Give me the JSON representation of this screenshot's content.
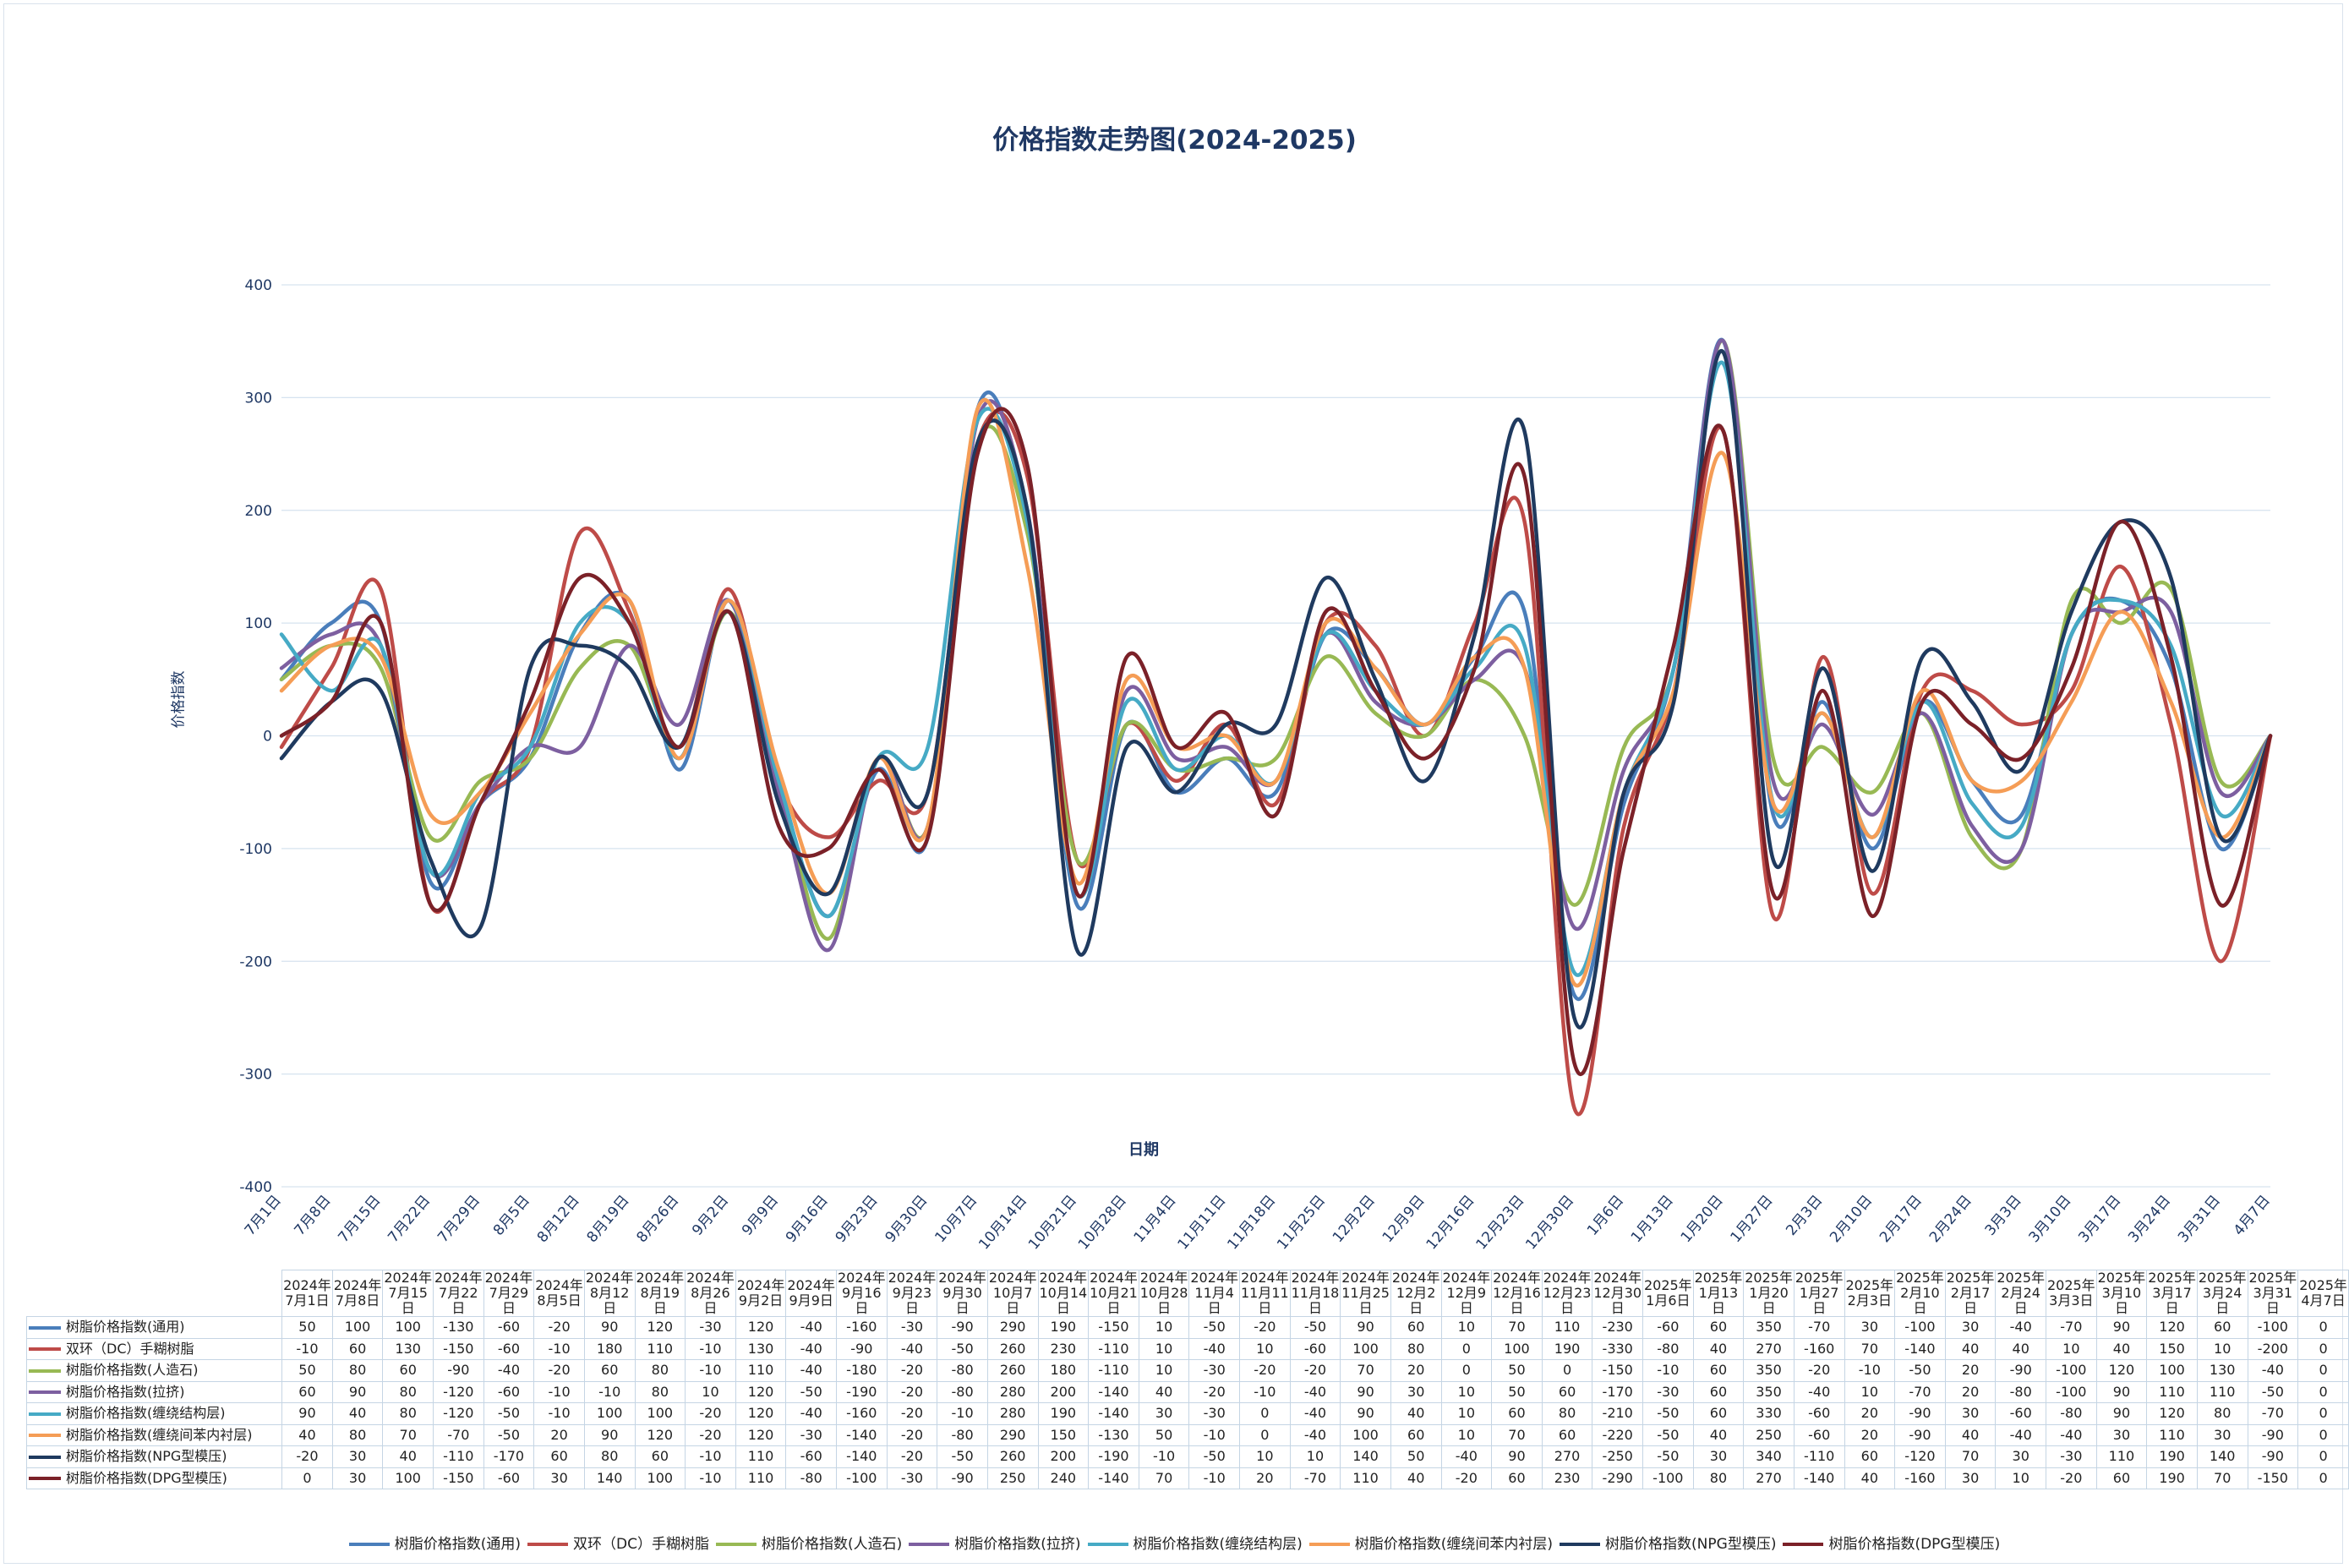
{
  "chart_data": {
    "type": "line",
    "title": "价格指数走势图(2024-2025)",
    "xlabel": "日期",
    "ylabel": "价格指数",
    "ylim": [
      -400,
      400
    ],
    "yticks": [
      400,
      300,
      200,
      100,
      0,
      -100,
      -200,
      -300,
      -400
    ],
    "grid": true,
    "legend_position": "bottom",
    "x_axis_labels": [
      "7月1日",
      "7月8日",
      "7月15日",
      "7月22日",
      "7月29日",
      "8月5日",
      "8月12日",
      "8月19日",
      "8月26日",
      "9月2日",
      "9月9日",
      "9月16日",
      "9月23日",
      "9月30日",
      "10月7日",
      "10月14日",
      "10月21日",
      "10月28日",
      "11月4日",
      "11月11日",
      "11月18日",
      "11月25日",
      "12月2日",
      "12月9日",
      "12月16日",
      "12月23日",
      "12月30日",
      "1月6日",
      "1月13日",
      "1月20日",
      "1月27日",
      "2月3日",
      "2月10日",
      "2月17日",
      "2月24日",
      "3月3日",
      "3月10日",
      "3月17日",
      "3月24日",
      "3月31日",
      "4月7日"
    ],
    "categories": [
      "2024年7月1日",
      "2024年7月8日",
      "2024年7月15日",
      "2024年7月22日",
      "2024年7月29日",
      "2024年8月5日",
      "2024年8月12日",
      "2024年8月19日",
      "2024年8月26日",
      "2024年9月2日",
      "2024年9月9日",
      "2024年9月16日",
      "2024年9月23日",
      "2024年9月30日",
      "2024年10月7日",
      "2024年10月14日",
      "2024年10月21日",
      "2024年10月28日",
      "2024年11月4日",
      "2024年11月11日",
      "2024年11月18日",
      "2024年11月25日",
      "2024年12月2日",
      "2024年12月9日",
      "2024年12月16日",
      "2024年12月23日",
      "2024年12月30日",
      "2025年1月6日",
      "2025年1月13日",
      "2025年1月20日",
      "2025年1月27日",
      "2025年2月3日",
      "2025年2月10日",
      "2025年2月17日",
      "2025年2月24日",
      "2025年3月3日",
      "2025年3月10日",
      "2025年3月17日",
      "2025年3月24日",
      "2025年3月31日",
      "2025年4月7日"
    ],
    "series": [
      {
        "name": "树脂价格指数(通用)",
        "color": "#4a7ebb",
        "values": [
          50,
          100,
          100,
          -130,
          -60,
          -20,
          90,
          120,
          -30,
          120,
          -40,
          -160,
          -30,
          -90,
          290,
          190,
          -150,
          10,
          -50,
          -20,
          -50,
          90,
          60,
          10,
          70,
          110,
          -230,
          -60,
          60,
          350,
          -70,
          30,
          -100,
          30,
          -40,
          -70,
          90,
          120,
          60,
          -100,
          0
        ]
      },
      {
        "name": "双环（DC）手糊树脂",
        "color": "#be4b48",
        "values": [
          -10,
          60,
          130,
          -150,
          -60,
          -10,
          180,
          110,
          -10,
          130,
          -40,
          -90,
          -40,
          -50,
          260,
          230,
          -110,
          10,
          -40,
          10,
          -60,
          100,
          80,
          0,
          100,
          190,
          -330,
          -80,
          40,
          270,
          -160,
          70,
          -140,
          40,
          40,
          10,
          40,
          150,
          10,
          -200,
          0
        ]
      },
      {
        "name": "树脂价格指数(人造石)",
        "color": "#98b954",
        "values": [
          50,
          80,
          60,
          -90,
          -40,
          -20,
          60,
          80,
          -10,
          110,
          -40,
          -180,
          -20,
          -80,
          260,
          180,
          -110,
          10,
          -30,
          -20,
          -20,
          70,
          20,
          0,
          50,
          0,
          -150,
          -10,
          60,
          350,
          -20,
          -10,
          -50,
          20,
          -90,
          -100,
          120,
          100,
          130,
          -40,
          0
        ]
      },
      {
        "name": "树脂价格指数(拉挤)",
        "color": "#7d5fa0",
        "values": [
          60,
          90,
          80,
          -120,
          -60,
          -10,
          -10,
          80,
          10,
          120,
          -50,
          -190,
          -20,
          -80,
          280,
          200,
          -140,
          40,
          -20,
          -10,
          -40,
          90,
          30,
          10,
          50,
          60,
          -170,
          -30,
          60,
          350,
          -40,
          10,
          -70,
          20,
          -80,
          -100,
          90,
          110,
          110,
          -50,
          0
        ]
      },
      {
        "name": "树脂价格指数(缠绕结构层)",
        "color": "#46aac5",
        "values": [
          90,
          40,
          80,
          -120,
          -50,
          -10,
          100,
          100,
          -20,
          120,
          -40,
          -160,
          -20,
          -10,
          280,
          190,
          -140,
          30,
          -30,
          0,
          -40,
          90,
          40,
          10,
          60,
          80,
          -210,
          -50,
          60,
          330,
          -60,
          20,
          -90,
          30,
          -60,
          -80,
          90,
          120,
          80,
          -70,
          0
        ]
      },
      {
        "name": "树脂价格指数(缠绕间苯内衬层)",
        "color": "#f59d56",
        "values": [
          40,
          80,
          70,
          -70,
          -50,
          20,
          90,
          120,
          -20,
          120,
          -30,
          -140,
          -20,
          -80,
          290,
          150,
          -130,
          50,
          -10,
          0,
          -40,
          100,
          60,
          10,
          70,
          60,
          -220,
          -50,
          40,
          250,
          -60,
          20,
          -90,
          40,
          -40,
          -40,
          30,
          110,
          30,
          -90,
          0
        ]
      },
      {
        "name": "树脂价格指数(NPG型模压)",
        "color": "#1f3a5f",
        "values": [
          -20,
          30,
          40,
          -110,
          -170,
          60,
          80,
          60,
          -10,
          110,
          -60,
          -140,
          -20,
          -50,
          260,
          200,
          -190,
          -10,
          -50,
          10,
          10,
          140,
          50,
          -40,
          90,
          270,
          -250,
          -50,
          30,
          340,
          -110,
          60,
          -120,
          70,
          30,
          -30,
          110,
          190,
          140,
          -90,
          0
        ]
      },
      {
        "name": "树脂价格指数(DPG型模压)",
        "color": "#7b2128",
        "values": [
          0,
          30,
          100,
          -150,
          -60,
          30,
          140,
          100,
          -10,
          110,
          -80,
          -100,
          -30,
          -90,
          250,
          240,
          -140,
          70,
          -10,
          20,
          -70,
          110,
          40,
          -20,
          60,
          230,
          -290,
          -100,
          80,
          270,
          -140,
          40,
          -160,
          30,
          10,
          -20,
          60,
          190,
          70,
          -150,
          0
        ]
      }
    ]
  }
}
